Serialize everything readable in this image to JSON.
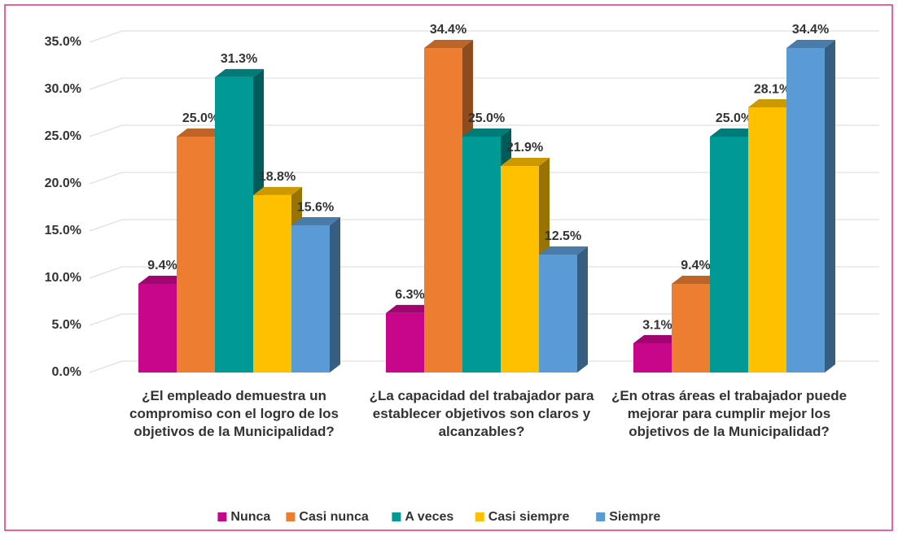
{
  "chart_data": {
    "type": "bar3d",
    "categories": [
      "¿El empleado demuestra un compromiso con el logro de los objetivos de la Municipalidad?",
      "¿La capacidad del trabajador para establecer objetivos son claros y alcanzables?",
      "¿En otras áreas el trabajador puede mejorar para cumplir mejor los objetivos de la Municipalidad?"
    ],
    "series": [
      {
        "name": "Nunca",
        "color": "#c8068c",
        "values": [
          9.4,
          6.3,
          3.1
        ],
        "value_labels": [
          "9.4%",
          "6.3%",
          "3.1%"
        ]
      },
      {
        "name": "Casi nunca",
        "color": "#ed7d31",
        "values": [
          25.0,
          34.4,
          9.4
        ],
        "value_labels": [
          "25.0%",
          "34.4%",
          "9.4%"
        ]
      },
      {
        "name": "A veces",
        "color": "#009a96",
        "values": [
          31.3,
          25.0,
          25.0
        ],
        "value_labels": [
          "31.3%",
          "25.0%",
          "25.0%"
        ]
      },
      {
        "name": "Casi siempre",
        "color": "#ffc000",
        "values": [
          18.8,
          21.9,
          28.1
        ],
        "value_labels": [
          "18.8%",
          "21.9%",
          "28.1%"
        ]
      },
      {
        "name": "Siempre",
        "color": "#5b9bd5",
        "values": [
          15.6,
          12.5,
          34.4
        ],
        "value_labels": [
          "15.6%",
          "12.5%",
          "34.4%"
        ]
      }
    ],
    "ylim": [
      0,
      35
    ],
    "yticks": [
      {
        "value": 0,
        "label": "0.0%"
      },
      {
        "value": 5,
        "label": "5.0%"
      },
      {
        "value": 10,
        "label": "10.0%"
      },
      {
        "value": 15,
        "label": "15.0%"
      },
      {
        "value": 20,
        "label": "20.0%"
      },
      {
        "value": 25,
        "label": "25.0%"
      },
      {
        "value": 30,
        "label": "30.0%"
      },
      {
        "value": 35,
        "label": "35.0%"
      }
    ],
    "grid": true,
    "legend": "bottom"
  }
}
